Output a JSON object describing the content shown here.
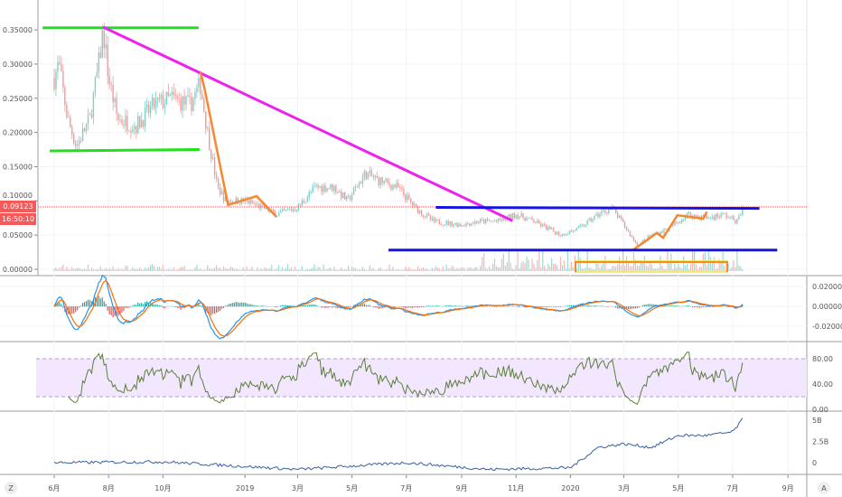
{
  "price_axis": {
    "ticks": [
      "0.35000",
      "0.30000",
      "0.25000",
      "0.20000",
      "0.15000",
      "0.10000",
      "0.05000",
      "0.00000"
    ],
    "values": [
      0.35,
      0.3,
      0.25,
      0.2,
      0.15,
      0.1,
      0.05,
      0.0
    ]
  },
  "last_price": {
    "value": "0.09123",
    "countdown": "16:50:10",
    "color": "#f55a5a"
  },
  "macd_axis": {
    "ticks": [
      "0.02000",
      "0.00000",
      "-0.02000"
    ],
    "values": [
      0.02,
      0,
      -0.02
    ]
  },
  "rsi_axis": {
    "ticks": [
      "80.00",
      "40.00",
      "0.00"
    ],
    "values": [
      80,
      40,
      0
    ],
    "band": [
      20,
      80
    ]
  },
  "obv_axis": {
    "ticks": [
      "5B",
      "2.5B",
      "0"
    ],
    "values": [
      5,
      2.5,
      0
    ]
  },
  "time_axis": {
    "labels": [
      "6月",
      "8月",
      "10月",
      "2019",
      "3月",
      "5月",
      "7月",
      "9月",
      "11月",
      "2020",
      "3月",
      "5月",
      "7月",
      "9月"
    ],
    "dates": [
      "2018-06-01",
      "2018-08-01",
      "2018-10-01",
      "2019-01-01",
      "2019-03-01",
      "2019-05-01",
      "2019-07-01",
      "2019-09-01",
      "2019-11-01",
      "2020-01-01",
      "2020-03-01",
      "2020-05-01",
      "2020-07-01",
      "2020-09-01"
    ]
  },
  "buttons": {
    "left": "Z",
    "right": "A"
  },
  "colors": {
    "up": "#26a69a",
    "down": "#ef5350",
    "macd": "#2196f3",
    "signal": "#ff6d00",
    "rsi": "#5b7f3a",
    "obv": "#3a5f9e",
    "rsi_band": "#f3e6ff"
  },
  "chart_data": {
    "type": "candlestick",
    "xlim": [
      "2018-05-15",
      "2020-09-20"
    ],
    "ylim": [
      0,
      0.36
    ],
    "price_path": [
      [
        "2018-06-01",
        0.28
      ],
      [
        "2018-06-06",
        0.3
      ],
      [
        "2018-06-16",
        0.22
      ],
      [
        "2018-06-26",
        0.18
      ],
      [
        "2018-07-11",
        0.22
      ],
      [
        "2018-07-21",
        0.3
      ],
      [
        "2018-07-26",
        0.35
      ],
      [
        "2018-08-01",
        0.28
      ],
      [
        "2018-08-11",
        0.22
      ],
      [
        "2018-09-01",
        0.21
      ],
      [
        "2018-09-21",
        0.24
      ],
      [
        "2018-10-11",
        0.25
      ],
      [
        "2018-10-31",
        0.24
      ],
      [
        "2018-11-12",
        0.27
      ],
      [
        "2018-11-20",
        0.2
      ],
      [
        "2018-12-01",
        0.12
      ],
      [
        "2018-12-11",
        0.1
      ],
      [
        "2019-01-01",
        0.1
      ],
      [
        "2019-01-21",
        0.09
      ],
      [
        "2019-02-05",
        0.08
      ],
      [
        "2019-03-01",
        0.09
      ],
      [
        "2019-03-21",
        0.12
      ],
      [
        "2019-04-11",
        0.12
      ],
      [
        "2019-04-26",
        0.1
      ],
      [
        "2019-05-16",
        0.14
      ],
      [
        "2019-05-31",
        0.13
      ],
      [
        "2019-06-21",
        0.12
      ],
      [
        "2019-07-11",
        0.09
      ],
      [
        "2019-07-31",
        0.07
      ],
      [
        "2019-09-01",
        0.065
      ],
      [
        "2019-09-21",
        0.07
      ],
      [
        "2019-10-11",
        0.07
      ],
      [
        "2019-11-01",
        0.08
      ],
      [
        "2019-11-21",
        0.07
      ],
      [
        "2019-12-21",
        0.05
      ],
      [
        "2020-01-11",
        0.06
      ],
      [
        "2020-02-01",
        0.08
      ],
      [
        "2020-02-16",
        0.09
      ],
      [
        "2020-03-01",
        0.065
      ],
      [
        "2020-03-16",
        0.035
      ],
      [
        "2020-04-01",
        0.05
      ],
      [
        "2020-04-21",
        0.06
      ],
      [
        "2020-05-11",
        0.08
      ],
      [
        "2020-06-01",
        0.075
      ],
      [
        "2020-06-21",
        0.08
      ],
      [
        "2020-07-06",
        0.07
      ],
      [
        "2020-07-13",
        0.09123
      ]
    ],
    "obv_path_billions": [
      [
        "2018-06-01",
        0
      ],
      [
        "2018-10-01",
        0.1
      ],
      [
        "2019-03-01",
        -0.8
      ],
      [
        "2019-07-01",
        0
      ],
      [
        "2019-10-01",
        -0.8
      ],
      [
        "2020-01-01",
        -0.6
      ],
      [
        "2020-02-01",
        1.8
      ],
      [
        "2020-03-01",
        2.2
      ],
      [
        "2020-04-01",
        1.8
      ],
      [
        "2020-05-01",
        3.2
      ],
      [
        "2020-06-01",
        3.2
      ],
      [
        "2020-07-01",
        3.6
      ],
      [
        "2020-07-13",
        5.2
      ]
    ],
    "drawings": [
      {
        "kind": "horizontal",
        "color": "#22e01e",
        "points": [
          [
            "2018-05-19",
            0.353
          ],
          [
            "2018-11-10",
            0.353
          ]
        ]
      },
      {
        "kind": "horizontal",
        "color": "#22e01e",
        "points": [
          [
            "2018-05-27",
            0.173
          ],
          [
            "2018-11-11",
            0.175
          ]
        ]
      },
      {
        "kind": "trendline",
        "color": "#ee22ee",
        "points": [
          [
            "2018-07-26",
            0.354
          ],
          [
            "2019-10-28",
            0.071
          ]
        ]
      },
      {
        "kind": "path",
        "color": "#f7882f",
        "points": [
          [
            "2018-11-12",
            0.289
          ],
          [
            "2018-11-17",
            0.262
          ],
          [
            "2018-12-13",
            0.094
          ],
          [
            "2019-01-14",
            0.107
          ],
          [
            "2019-02-05",
            0.077
          ]
        ]
      },
      {
        "kind": "path",
        "color": "#f7882f",
        "points": [
          [
            "2020-03-11",
            0.028
          ],
          [
            "2020-04-07",
            0.053
          ],
          [
            "2020-04-14",
            0.046
          ],
          [
            "2020-04-30",
            0.079
          ],
          [
            "2020-05-29",
            0.074
          ],
          [
            "2020-06-02",
            0.084
          ]
        ]
      },
      {
        "kind": "horizontal",
        "color": "#1414e6",
        "points": [
          [
            "2019-08-03",
            0.0905
          ],
          [
            "2020-07-31",
            0.089
          ]
        ]
      },
      {
        "kind": "horizontal",
        "color": "#1414e6",
        "points": [
          [
            "2019-06-11",
            0.028
          ],
          [
            "2020-08-20",
            0.028
          ]
        ]
      }
    ],
    "indicators": [
      "Volume",
      "MACD",
      "RSI",
      "OBV"
    ]
  }
}
